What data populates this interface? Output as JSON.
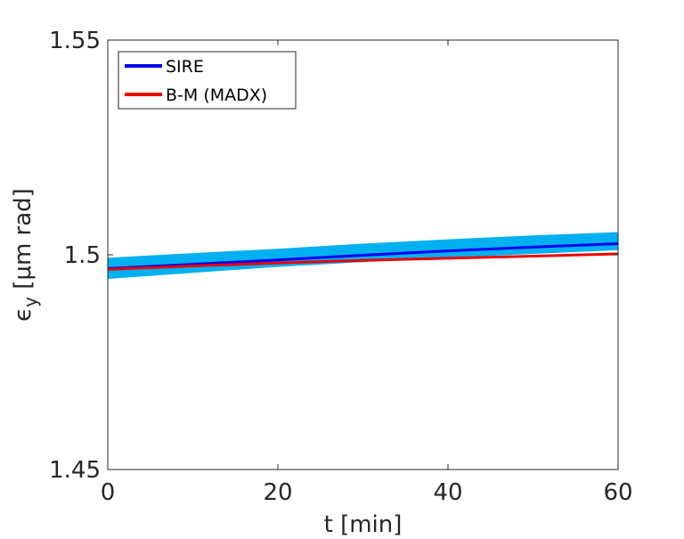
{
  "chart_data": {
    "type": "line",
    "xlabel": "t [min]",
    "ylabel_main": "ϵ",
    "ylabel_sub": "y",
    "ylabel_rest": " [μm rad]",
    "xlim": [
      0,
      60
    ],
    "ylim": [
      1.45,
      1.55
    ],
    "xticks": [
      0,
      20,
      40,
      60
    ],
    "xtick_labels": [
      "0",
      "20",
      "40",
      "60"
    ],
    "yticks": [
      1.45,
      1.5,
      1.55
    ],
    "ytick_labels": [
      "1.45",
      "1.5",
      "1.55"
    ],
    "grid": false,
    "legend_position": "top-left",
    "band": {
      "color": "#00b0f0",
      "x": [
        0,
        10,
        20,
        30,
        40,
        50,
        60
      ],
      "lower": [
        1.4944,
        1.4958,
        1.4972,
        1.4983,
        1.4993,
        1.5002,
        1.5011
      ],
      "upper": [
        1.4993,
        1.5004,
        1.5014,
        1.5026,
        1.5036,
        1.5045,
        1.5053
      ]
    },
    "series": [
      {
        "name": "SIRE",
        "color": "#0000ee",
        "x": [
          0,
          10,
          20,
          30,
          40,
          50,
          60
        ],
        "values": [
          1.4968,
          1.4978,
          1.4988,
          1.4999,
          1.5009,
          1.5018,
          1.5026
        ]
      },
      {
        "name": "B-M (MADX)",
        "color": "#ee0000",
        "x": [
          0,
          10,
          20,
          30,
          40,
          50,
          60
        ],
        "values": [
          1.4966,
          1.4974,
          1.4981,
          1.4987,
          1.4992,
          1.4997,
          1.5002
        ]
      }
    ]
  }
}
